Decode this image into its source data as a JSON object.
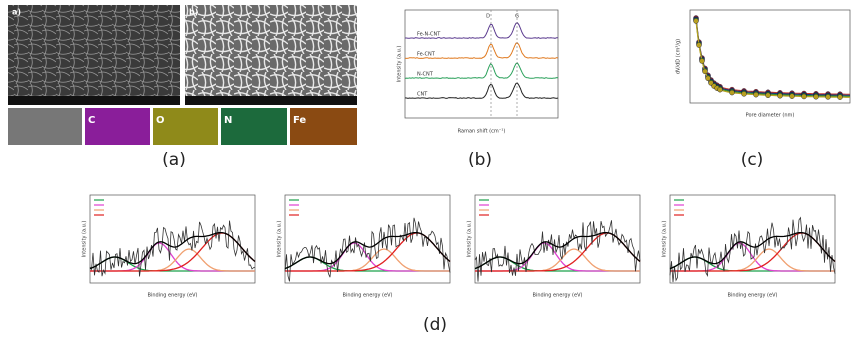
{
  "panels": {
    "a": {
      "label": "(a)",
      "images": [
        "a)",
        "b)"
      ],
      "maps": [
        "C",
        "O",
        "N",
        "Fe"
      ]
    },
    "b": {
      "label": "(b)",
      "x_label": "Raman shift (cm⁻¹)",
      "y_label": "Intensity (a.u.)",
      "peaks": [
        "D",
        "G"
      ],
      "samples": [
        "Fe-N-CNT",
        "Fe-CNT",
        "N-CNT",
        "CNT"
      ]
    },
    "c": {
      "label": "(c)",
      "x_label": "Pore diameter (nm)",
      "y_label": "dV/dD (cm³/g)"
    },
    "d": {
      "label": "(d)",
      "x_label": "Binding energy (eV)",
      "y_label": "Intensity (a.u.)"
    }
  }
}
